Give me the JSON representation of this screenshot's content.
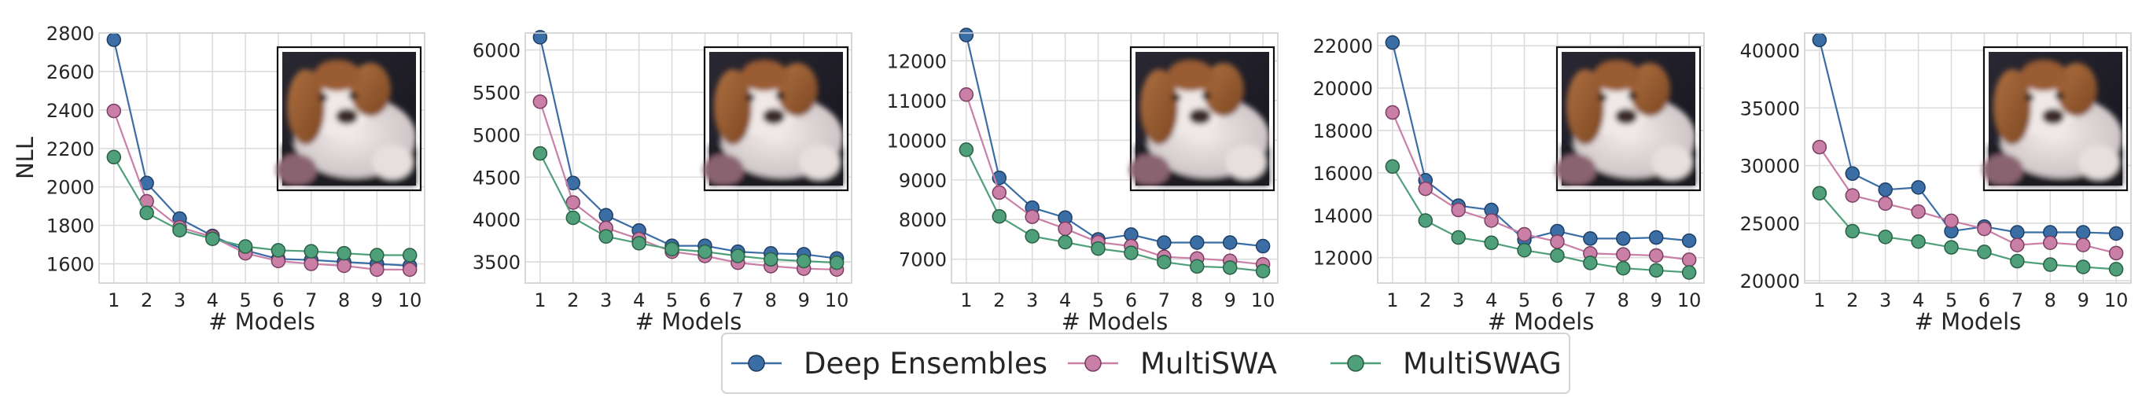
{
  "legend": [
    {
      "name": "Deep Ensembles",
      "color": "#3a6ea5",
      "edge": "#1f3f66"
    },
    {
      "name": "MultiSWA",
      "color": "#c97fa6",
      "edge": "#7a3f63"
    },
    {
      "name": "MultiSWAG",
      "color": "#4fa07a",
      "edge": "#2a5f45"
    }
  ],
  "inset_image": "puppy-photo",
  "chart_data": [
    {
      "type": "line",
      "xlabel": "# Models",
      "ylabel": "NLL",
      "x": [
        1,
        2,
        3,
        4,
        5,
        6,
        7,
        8,
        9,
        10
      ],
      "ylim": [
        1500,
        2800
      ],
      "yticks": [
        1600,
        1800,
        2000,
        2200,
        2400,
        2600,
        2800
      ],
      "grid": true,
      "series": [
        {
          "name": "Deep Ensembles",
          "values": [
            2765,
            2020,
            1835,
            1745,
            1670,
            1625,
            1620,
            1610,
            1600,
            1590
          ]
        },
        {
          "name": "MultiSWA",
          "values": [
            2395,
            1925,
            1790,
            1740,
            1655,
            1615,
            1600,
            1590,
            1570,
            1570
          ]
        },
        {
          "name": "MultiSWAG",
          "values": [
            2155,
            1865,
            1775,
            1730,
            1690,
            1670,
            1665,
            1655,
            1645,
            1645
          ]
        }
      ]
    },
    {
      "type": "line",
      "xlabel": "# Models",
      "ylabel": "",
      "x": [
        1,
        2,
        3,
        4,
        5,
        6,
        7,
        8,
        9,
        10
      ],
      "ylim": [
        3250,
        6200
      ],
      "yticks": [
        3500,
        4000,
        4500,
        5000,
        5500,
        6000
      ],
      "grid": true,
      "series": [
        {
          "name": "Deep Ensembles",
          "values": [
            6150,
            4430,
            4050,
            3870,
            3690,
            3690,
            3620,
            3600,
            3590,
            3540
          ]
        },
        {
          "name": "MultiSWA",
          "values": [
            5390,
            4200,
            3900,
            3770,
            3620,
            3570,
            3490,
            3450,
            3420,
            3410
          ]
        },
        {
          "name": "MultiSWAG",
          "values": [
            4780,
            4020,
            3800,
            3720,
            3650,
            3620,
            3570,
            3530,
            3510,
            3490
          ]
        }
      ]
    },
    {
      "type": "line",
      "xlabel": "# Models",
      "ylabel": "",
      "x": [
        1,
        2,
        3,
        4,
        5,
        6,
        7,
        8,
        9,
        10
      ],
      "ylim": [
        6400,
        12700
      ],
      "yticks": [
        7000,
        8000,
        9000,
        10000,
        11000,
        12000
      ],
      "grid": true,
      "series": [
        {
          "name": "Deep Ensembles",
          "values": [
            12650,
            9050,
            8300,
            8050,
            7500,
            7620,
            7420,
            7420,
            7420,
            7330
          ]
        },
        {
          "name": "MultiSWA",
          "values": [
            11150,
            8680,
            8070,
            7770,
            7430,
            7330,
            7060,
            7020,
            6960,
            6870
          ]
        },
        {
          "name": "MultiSWAG",
          "values": [
            9760,
            8080,
            7580,
            7430,
            7270,
            7160,
            6930,
            6820,
            6790,
            6700
          ]
        }
      ]
    },
    {
      "type": "line",
      "xlabel": "# Models",
      "ylabel": "",
      "x": [
        1,
        2,
        3,
        4,
        5,
        6,
        7,
        8,
        9,
        10
      ],
      "ylim": [
        10800,
        22600
      ],
      "yticks": [
        12000,
        14000,
        16000,
        18000,
        20000,
        22000
      ],
      "grid": true,
      "series": [
        {
          "name": "Deep Ensembles",
          "values": [
            22150,
            15650,
            14450,
            14250,
            12850,
            13250,
            12900,
            12900,
            12950,
            12800
          ]
        },
        {
          "name": "MultiSWA",
          "values": [
            18850,
            15250,
            14250,
            13750,
            13100,
            12750,
            12200,
            12150,
            12100,
            11900
          ]
        },
        {
          "name": "MultiSWAG",
          "values": [
            16300,
            13750,
            12950,
            12700,
            12350,
            12100,
            11750,
            11500,
            11400,
            11300
          ]
        }
      ]
    },
    {
      "type": "line",
      "xlabel": "# Models",
      "ylabel": "",
      "x": [
        1,
        2,
        3,
        4,
        5,
        6,
        7,
        8,
        9,
        10
      ],
      "ylim": [
        19800,
        41500
      ],
      "yticks": [
        20000,
        25000,
        30000,
        35000,
        40000
      ],
      "grid": true,
      "series": [
        {
          "name": "Deep Ensembles",
          "values": [
            40900,
            29300,
            27900,
            28100,
            24300,
            24700,
            24200,
            24200,
            24200,
            24100
          ]
        },
        {
          "name": "MultiSWA",
          "values": [
            31600,
            27400,
            26700,
            26000,
            25200,
            24500,
            23100,
            23300,
            23100,
            22400
          ]
        },
        {
          "name": "MultiSWAG",
          "values": [
            27600,
            24300,
            23800,
            23400,
            22900,
            22500,
            21700,
            21400,
            21200,
            21000
          ]
        }
      ]
    }
  ]
}
